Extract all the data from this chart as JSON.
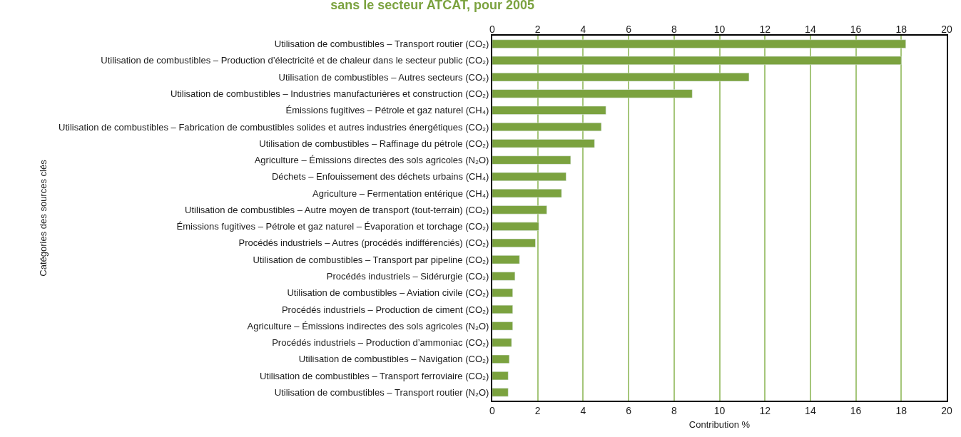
{
  "chart_data": {
    "type": "bar",
    "orientation": "horizontal",
    "title": "sans le secteur ATCAT, pour 2005",
    "xlabel": "Contribution %",
    "ylabel": "Catégories des sources clés",
    "categories": [
      "Utilisation de combustibles – Transport routier (CO₂)",
      "Utilisation de combustibles – Production d’électricité et de chaleur dans le secteur public (CO₂)",
      "Utilisation de combustibles – Autres secteurs (CO₂)",
      "Utilisation de combustibles – Industries manufacturières et construction (CO₂)",
      "Émissions fugitives – Pétrole et gaz naturel (CH₄)",
      "Utilisation de combustibles – Fabrication de combustibles solides et autres industries énergétiques (CO₂)",
      "Utilisation de combustibles – Raffinage du pétrole (CO₂)",
      "Agriculture – Émissions directes des sols agricoles (N₂O)",
      "Déchets – Enfouissement des déchets urbains (CH₄)",
      "Agriculture – Fermentation entérique (CH₄)",
      "Utilisation de combustibles – Autre moyen de transport (tout-terrain) (CO₂)",
      "Émissions fugitives – Pétrole et gaz naturel – Évaporation et torchage (CO₂)",
      "Procédés industriels – Autres (procédés indifférenciés) (CO₂)",
      "Utilisation de combustibles – Transport par pipeline (CO₂)",
      "Procédés industriels – Sidérurgie (CO₂)",
      "Utilisation de combustibles – Aviation civile (CO₂)",
      "Procédés industriels – Production de ciment (CO₂)",
      "Agriculture – Émissions indirectes des sols agricoles (N₂O)",
      "Procédés industriels – Production d’ammoniac (CO₂)",
      "Utilisation de combustibles – Navigation (CO₂)",
      "Utilisation de combustibles – Transport ferroviaire (CO₂)",
      "Utilisation de combustibles – Transport routier (N₂O)"
    ],
    "values": [
      18.2,
      18.0,
      11.3,
      8.8,
      5.0,
      4.8,
      4.5,
      3.45,
      3.25,
      3.05,
      2.4,
      2.05,
      1.9,
      1.2,
      1.0,
      0.9,
      0.9,
      0.9,
      0.85,
      0.75,
      0.7,
      0.7
    ],
    "color": "#7ba23f",
    "xlim": [
      0,
      20
    ],
    "xticks": [
      0,
      2,
      4,
      6,
      8,
      10,
      12,
      14,
      16,
      18,
      20
    ],
    "x2lim": [
      0,
      20
    ],
    "x2ticks": [
      0,
      2,
      4,
      6,
      8,
      10,
      12,
      14,
      16,
      18,
      20
    ],
    "grid": "x",
    "legend": false
  }
}
